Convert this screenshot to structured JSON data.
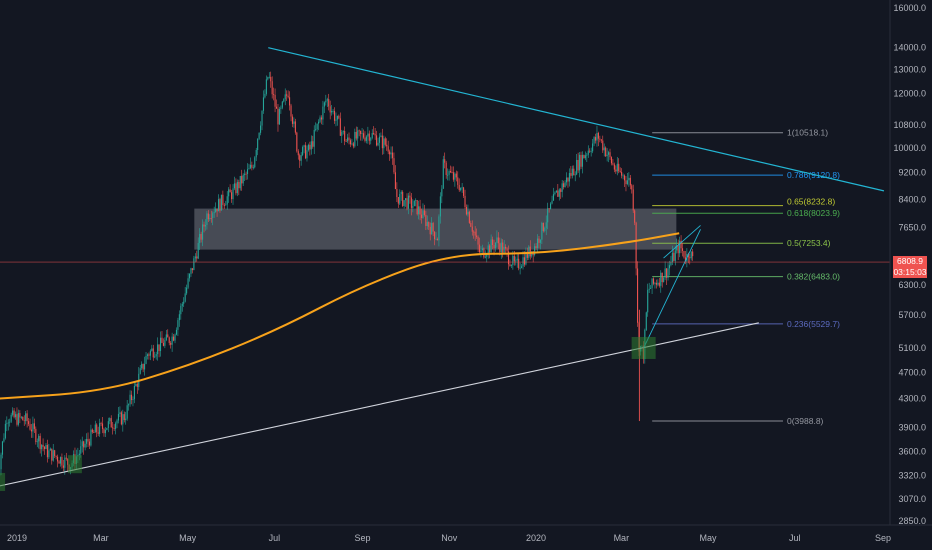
{
  "chart_data": {
    "type": "candlestick",
    "y_ticks": [
      "16000.0",
      "14000.0",
      "13000.0",
      "12000.0",
      "10800.0",
      "10000.0",
      "9200.0",
      "8400.0",
      "7650.0",
      "6800.0",
      "6300.0",
      "5700.0",
      "5100.0",
      "4700.0",
      "4300.0",
      "3900.0",
      "3600.0",
      "3320.0",
      "3070.0",
      "2850.0"
    ],
    "x_ticks": [
      "2019",
      "Mar",
      "May",
      "Jul",
      "Sep",
      "Nov",
      "2020",
      "Mar",
      "May",
      "Jul",
      "Sep"
    ],
    "ylim": [
      2850,
      16000
    ],
    "scale": "log",
    "current_price": "6808.9",
    "countdown": "03:15:03",
    "fib_levels": [
      {
        "label": "1(10518.1)",
        "value": 10518.1
      },
      {
        "label": "0.786(9120.8)",
        "value": 9120.8
      },
      {
        "label": "0.65(8232.8)",
        "value": 8232.8
      },
      {
        "label": "0.618(8023.9)",
        "value": 8023.9
      },
      {
        "label": "0.5(7253.4)",
        "value": 7253.4
      },
      {
        "label": "0.382(6483.0)",
        "value": 6483.0
      },
      {
        "label": "0.236(5529.7)",
        "value": 5529.7
      },
      {
        "label": "0(3988.8)",
        "value": 3988.8
      }
    ],
    "price_path": [
      [
        "2018-12-17",
        3250
      ],
      [
        "2018-12-24",
        4050
      ],
      [
        "2019-01-07",
        4000
      ],
      [
        "2019-01-21",
        3600
      ],
      [
        "2019-02-07",
        3450
      ],
      [
        "2019-02-24",
        3850
      ],
      [
        "2019-03-17",
        4050
      ],
      [
        "2019-04-02",
        5000
      ],
      [
        "2019-04-20",
        5300
      ],
      [
        "2019-05-14",
        8000
      ],
      [
        "2019-06-01",
        8600
      ],
      [
        "2019-06-15",
        9400
      ],
      [
        "2019-06-26",
        12800
      ],
      [
        "2019-07-03",
        11000
      ],
      [
        "2019-07-10",
        12100
      ],
      [
        "2019-07-17",
        9800
      ],
      [
        "2019-07-25",
        9900
      ],
      [
        "2019-08-06",
        11800
      ],
      [
        "2019-08-20",
        10200
      ],
      [
        "2019-09-05",
        10500
      ],
      [
        "2019-09-20",
        10000
      ],
      [
        "2019-09-24",
        8500
      ],
      [
        "2019-10-08",
        8200
      ],
      [
        "2019-10-23",
        7400
      ],
      [
        "2019-10-27",
        9400
      ],
      [
        "2019-11-08",
        8800
      ],
      [
        "2019-11-22",
        7000
      ],
      [
        "2019-12-04",
        7300
      ],
      [
        "2019-12-17",
        6700
      ],
      [
        "2019-12-31",
        7200
      ],
      [
        "2020-01-14",
        8500
      ],
      [
        "2020-01-30",
        9500
      ],
      [
        "2020-02-13",
        10400
      ],
      [
        "2020-02-25",
        9300
      ],
      [
        "2020-03-07",
        8900
      ],
      [
        "2020-03-10",
        7800
      ],
      [
        "2020-03-12",
        5200
      ],
      [
        "2020-03-16",
        5000
      ],
      [
        "2020-03-19",
        6200
      ],
      [
        "2020-04-01",
        6600
      ],
      [
        "2020-04-10",
        7200
      ],
      [
        "2020-04-15",
        6900
      ],
      [
        "2020-04-17",
        7100
      ],
      [
        "2020-04-20",
        6808.9
      ]
    ],
    "ma_path": [
      [
        "2018-12-17",
        4300
      ],
      [
        "2019-03-01",
        4400
      ],
      [
        "2019-05-01",
        4800
      ],
      [
        "2019-07-01",
        5400
      ],
      [
        "2019-09-01",
        6300
      ],
      [
        "2019-11-01",
        7000
      ],
      [
        "2020-01-01",
        7000
      ],
      [
        "2020-03-01",
        7250
      ],
      [
        "2020-04-10",
        7500
      ]
    ],
    "trendlines": [
      {
        "name": "descending-resistance",
        "from": [
          "2019-06-26",
          14000
        ],
        "to": [
          "2020-09-01",
          8650
        ]
      },
      {
        "name": "ascending-support",
        "from": [
          "2018-12-17",
          3200
        ],
        "to": [
          "2020-06-05",
          5550
        ]
      },
      {
        "name": "wedge-lower",
        "from": [
          "2020-03-16",
          5100
        ],
        "to": [
          "2020-04-25",
          7600
        ]
      },
      {
        "name": "wedge-upper",
        "from": [
          "2020-03-30",
          6900
        ],
        "to": [
          "2020-04-25",
          7700
        ]
      }
    ],
    "zone": {
      "from": [
        "2019-05-05",
        8150
      ],
      "to": [
        "2020-04-08",
        7100
      ]
    },
    "highlight_boxes": [
      {
        "at": [
          "2018-12-18",
          3250
        ]
      },
      {
        "at": [
          "2019-02-10",
          3450
        ]
      },
      {
        "at": [
          "2020-03-16",
          5100
        ]
      }
    ]
  },
  "colors": {
    "background": "#131722",
    "bull": "#26a69a",
    "bear": "#ef5350",
    "ma": "#f7a21b",
    "trend_resistance": "#23b5d3",
    "trend_support": "#d1d4dc",
    "zone": "#d1d4dc",
    "highlight": "#2e7d32",
    "fib_1": "#9598a1",
    "fib_786": "#2196f3",
    "fib_65": "#c0ca33",
    "fib_618": "#4caf50",
    "fib_5": "#8bc34a",
    "fib_382": "#66bb6a",
    "fib_236": "#5c6bc0",
    "fib_0": "#9598a1",
    "price_line": "#ef5350"
  }
}
